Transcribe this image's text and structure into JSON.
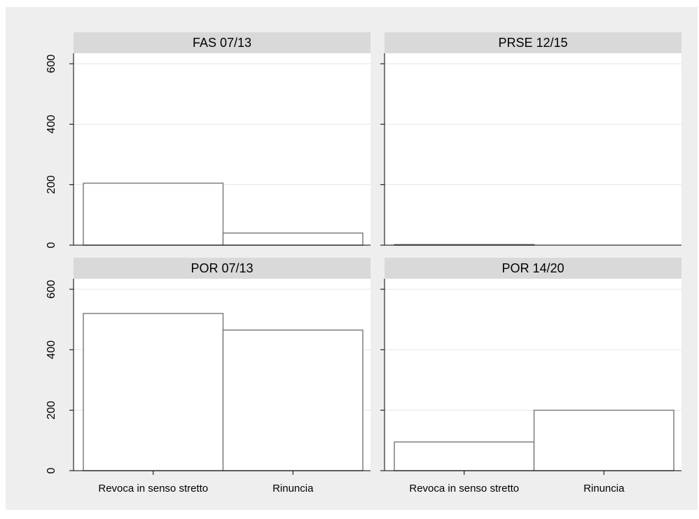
{
  "chart_data": {
    "type": "bar",
    "categories": [
      "Revoca in senso stretto",
      "Rinuncia"
    ],
    "y_ticks": [
      "0",
      "200",
      "400",
      "600"
    ],
    "ylim": [
      0,
      600
    ],
    "grid": true,
    "colors": {
      "background": "#eeeeee",
      "plot": "#ffffff",
      "header": "#d9d9d9",
      "bar_fill": "#ffffff",
      "bar_stroke": "#7f7f7f",
      "grid": "#e6e6e6",
      "axis": "#000000"
    },
    "panels": [
      {
        "title": "FAS 07/13",
        "values": [
          205,
          40
        ]
      },
      {
        "title": "PRSE 12/15",
        "values": [
          2,
          0
        ]
      },
      {
        "title": "POR 07/13",
        "values": [
          520,
          465
        ]
      },
      {
        "title": "POR 14/20",
        "values": [
          95,
          200
        ]
      }
    ]
  }
}
